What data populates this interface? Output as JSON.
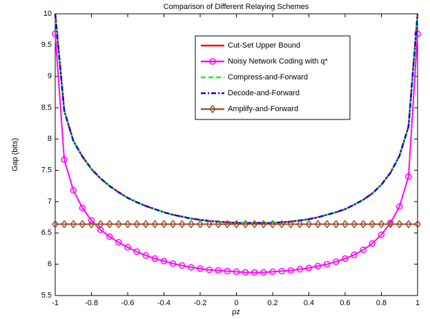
{
  "chart_data": {
    "type": "line",
    "title": "Comparison of Different Relaying Schemes",
    "x_label": "ρz",
    "y_label": "Gap (bits)",
    "x": [
      -1,
      -0.95,
      -0.9,
      -0.85,
      -0.8,
      -0.75,
      -0.7,
      -0.65,
      -0.6,
      -0.55,
      -0.5,
      -0.45,
      -0.4,
      -0.35,
      -0.3,
      -0.25,
      -0.2,
      -0.15,
      -0.1,
      -0.05,
      0,
      0.05,
      0.1,
      0.15,
      0.2,
      0.25,
      0.3,
      0.35,
      0.4,
      0.45,
      0.5,
      0.55,
      0.6,
      0.65,
      0.7,
      0.75,
      0.8,
      0.85,
      0.9,
      0.95,
      1
    ],
    "series": [
      {
        "name": "Cut-Set Upper Bound",
        "color": "#ff0000",
        "dash": "solid",
        "marker": "none",
        "values": [
          10,
          8.45,
          7.97,
          7.72,
          7.52,
          7.37,
          7.25,
          7.15,
          7.06,
          6.99,
          6.93,
          6.88,
          6.83,
          6.79,
          6.76,
          6.73,
          6.71,
          6.69,
          6.68,
          6.67,
          6.66,
          6.66,
          6.66,
          6.66,
          6.66,
          6.67,
          6.68,
          6.7,
          6.72,
          6.75,
          6.79,
          6.83,
          6.88,
          6.95,
          7.03,
          7.13,
          7.27,
          7.46,
          7.73,
          8.2,
          10
        ]
      },
      {
        "name": "Noisy Network Coding with q*",
        "color": "#ff00ff",
        "dash": "solid",
        "marker": "circle",
        "values": [
          9.68,
          7.67,
          7.18,
          6.9,
          6.7,
          6.55,
          6.44,
          6.35,
          6.27,
          6.2,
          6.14,
          6.09,
          6.05,
          6.01,
          5.98,
          5.95,
          5.93,
          5.91,
          5.9,
          5.89,
          5.88,
          5.87,
          5.87,
          5.87,
          5.88,
          5.89,
          5.9,
          5.92,
          5.94,
          5.97,
          6,
          6.04,
          6.09,
          6.15,
          6.23,
          6.33,
          6.47,
          6.66,
          6.92,
          7.4,
          9.68
        ]
      },
      {
        "name": "Compress-and-Forward",
        "color": "#00ff00",
        "dash": "dashed",
        "marker": "none",
        "values": [
          10,
          8.45,
          7.97,
          7.72,
          7.52,
          7.37,
          7.25,
          7.15,
          7.06,
          6.99,
          6.93,
          6.88,
          6.83,
          6.79,
          6.76,
          6.73,
          6.71,
          6.69,
          6.68,
          6.67,
          6.66,
          6.66,
          6.66,
          6.66,
          6.66,
          6.67,
          6.68,
          6.7,
          6.72,
          6.75,
          6.79,
          6.83,
          6.88,
          6.95,
          7.03,
          7.13,
          7.27,
          7.46,
          7.73,
          8.2,
          10
        ]
      },
      {
        "name": "Decode-and-Forward",
        "color": "#0000ff",
        "dash": "dashdot",
        "marker": "none",
        "values": [
          10,
          8.45,
          7.97,
          7.72,
          7.52,
          7.37,
          7.25,
          7.15,
          7.06,
          6.99,
          6.93,
          6.88,
          6.83,
          6.79,
          6.76,
          6.73,
          6.71,
          6.69,
          6.68,
          6.67,
          6.66,
          6.66,
          6.66,
          6.66,
          6.66,
          6.67,
          6.68,
          6.7,
          6.72,
          6.75,
          6.79,
          6.83,
          6.88,
          6.95,
          7.03,
          7.13,
          7.27,
          7.46,
          7.73,
          8.2,
          10
        ]
      },
      {
        "name": "Amplify-and-Forward",
        "color": "#a0522d",
        "dash": "solid",
        "marker": "diamond",
        "values": [
          6.64,
          6.64,
          6.64,
          6.64,
          6.64,
          6.64,
          6.64,
          6.64,
          6.64,
          6.64,
          6.64,
          6.64,
          6.64,
          6.64,
          6.64,
          6.64,
          6.64,
          6.64,
          6.64,
          6.64,
          6.64,
          6.64,
          6.64,
          6.64,
          6.64,
          6.64,
          6.64,
          6.64,
          6.64,
          6.64,
          6.64,
          6.64,
          6.64,
          6.64,
          6.64,
          6.64,
          6.64,
          6.64,
          6.64,
          6.64,
          6.64
        ]
      }
    ],
    "xlim": [
      -1,
      1
    ],
    "xticks": [
      -1,
      -0.8,
      -0.6,
      -0.4,
      -0.2,
      0,
      0.2,
      0.4,
      0.6,
      0.8,
      1
    ],
    "ylim": [
      5.5,
      10
    ],
    "yticks": [
      5.5,
      6,
      6.5,
      7,
      7.5,
      8,
      8.5,
      9,
      9.5,
      10
    ],
    "grid": false,
    "legend": "top-right"
  }
}
